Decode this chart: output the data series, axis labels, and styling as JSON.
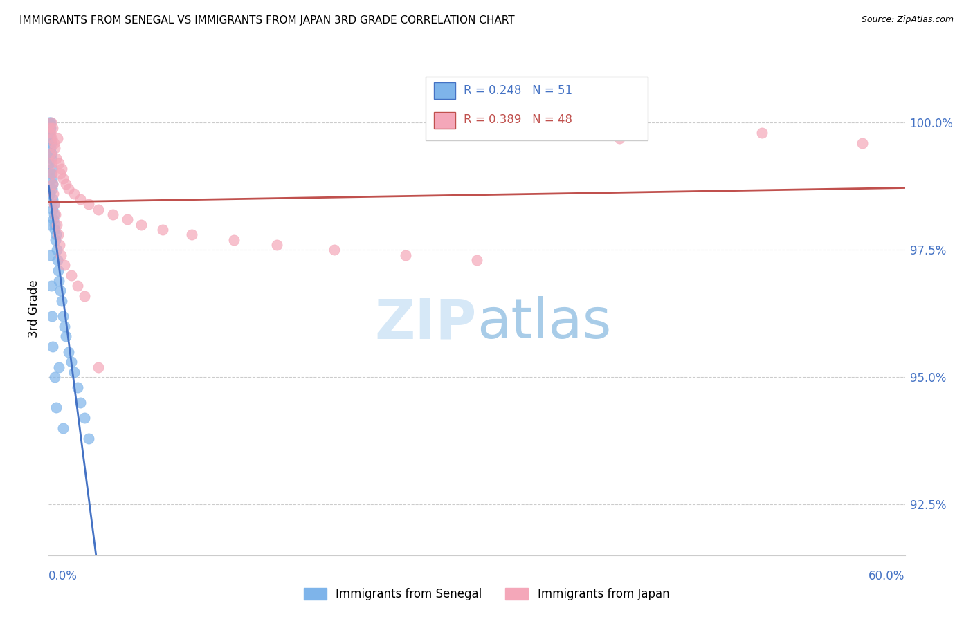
{
  "title": "IMMIGRANTS FROM SENEGAL VS IMMIGRANTS FROM JAPAN 3RD GRADE CORRELATION CHART",
  "source": "Source: ZipAtlas.com",
  "ylabel": "3rd Grade",
  "y_ticks": [
    92.5,
    95.0,
    97.5,
    100.0
  ],
  "y_tick_labels": [
    "92.5%",
    "95.0%",
    "97.5%",
    "100.0%"
  ],
  "xlim": [
    0.0,
    60.0
  ],
  "ylim": [
    91.5,
    101.2
  ],
  "legend_senegal": "Immigrants from Senegal",
  "legend_japan": "Immigrants from Japan",
  "R_senegal": 0.248,
  "N_senegal": 51,
  "R_japan": 0.389,
  "N_japan": 48,
  "color_senegal": "#7EB4EA",
  "color_japan": "#F4A7B9",
  "color_senegal_line": "#4472C4",
  "color_japan_line": "#C0504D",
  "color_axis_labels": "#4472C4",
  "senegal_x": [
    0.05,
    0.08,
    0.1,
    0.12,
    0.12,
    0.15,
    0.15,
    0.18,
    0.18,
    0.2,
    0.2,
    0.22,
    0.25,
    0.25,
    0.28,
    0.3,
    0.3,
    0.32,
    0.35,
    0.38,
    0.4,
    0.42,
    0.45,
    0.5,
    0.55,
    0.6,
    0.65,
    0.7,
    0.8,
    0.9,
    1.0,
    1.1,
    1.2,
    1.4,
    1.6,
    1.8,
    2.0,
    2.2,
    2.5,
    2.8,
    0.05,
    0.08,
    0.1,
    0.15,
    0.2,
    0.25,
    0.3,
    0.4,
    0.5,
    0.7,
    1.0
  ],
  "senegal_y": [
    100.0,
    99.9,
    99.8,
    99.7,
    100.0,
    99.9,
    99.5,
    99.3,
    99.6,
    99.4,
    99.0,
    98.9,
    99.1,
    98.7,
    98.5,
    98.8,
    98.3,
    98.1,
    98.4,
    98.2,
    97.9,
    98.0,
    97.7,
    97.8,
    97.5,
    97.3,
    97.1,
    96.9,
    96.7,
    96.5,
    96.2,
    96.0,
    95.8,
    95.5,
    95.3,
    95.1,
    94.8,
    94.5,
    94.2,
    93.8,
    99.2,
    98.6,
    98.0,
    97.4,
    96.8,
    96.2,
    95.6,
    95.0,
    94.4,
    95.2,
    94.0
  ],
  "japan_x": [
    0.1,
    0.15,
    0.2,
    0.25,
    0.3,
    0.35,
    0.4,
    0.5,
    0.6,
    0.7,
    0.8,
    0.9,
    1.0,
    1.2,
    1.4,
    1.8,
    2.2,
    2.8,
    3.5,
    4.5,
    5.5,
    6.5,
    8.0,
    10.0,
    13.0,
    16.0,
    20.0,
    25.0,
    30.0,
    40.0,
    50.0,
    57.0,
    0.12,
    0.18,
    0.22,
    0.28,
    0.32,
    0.38,
    0.45,
    0.55,
    0.65,
    0.75,
    0.85,
    1.1,
    1.6,
    2.0,
    2.5,
    3.5
  ],
  "japan_y": [
    99.9,
    99.8,
    100.0,
    99.7,
    99.9,
    99.6,
    99.5,
    99.3,
    99.7,
    99.2,
    99.0,
    99.1,
    98.9,
    98.8,
    98.7,
    98.6,
    98.5,
    98.4,
    98.3,
    98.2,
    98.1,
    98.0,
    97.9,
    97.8,
    97.7,
    97.6,
    97.5,
    97.4,
    97.3,
    99.7,
    99.8,
    99.6,
    99.4,
    99.2,
    99.0,
    98.8,
    98.6,
    98.4,
    98.2,
    98.0,
    97.8,
    97.6,
    97.4,
    97.2,
    97.0,
    96.8,
    96.6,
    95.2
  ]
}
